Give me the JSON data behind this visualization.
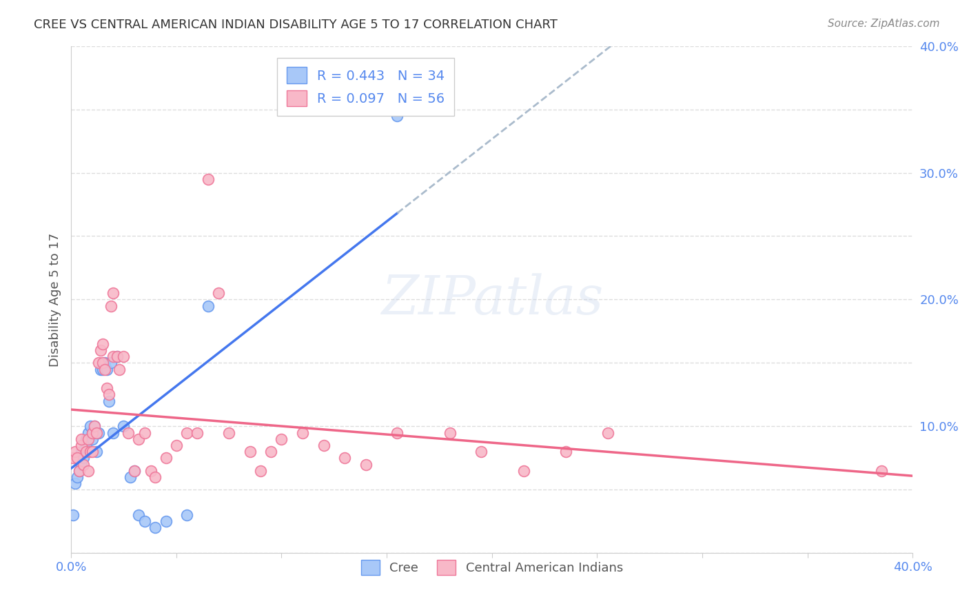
{
  "title": "CREE VS CENTRAL AMERICAN INDIAN DISABILITY AGE 5 TO 17 CORRELATION CHART",
  "source": "Source: ZipAtlas.com",
  "ylabel": "Disability Age 5 to 17",
  "xlim": [
    0.0,
    0.4
  ],
  "ylim": [
    0.0,
    0.4
  ],
  "xticks": [
    0.0,
    0.05,
    0.1,
    0.15,
    0.2,
    0.25,
    0.3,
    0.35,
    0.4
  ],
  "yticks": [
    0.0,
    0.05,
    0.1,
    0.15,
    0.2,
    0.25,
    0.3,
    0.35,
    0.4
  ],
  "grid_color": "#dddddd",
  "bg_color": "#ffffff",
  "watermark": "ZIPatlas",
  "cree_color": "#a8c8f8",
  "cai_color": "#f8b8c8",
  "cree_edge_color": "#6699ee",
  "cai_edge_color": "#ee7799",
  "cree_line_color": "#4477ee",
  "cai_line_color": "#ee6688",
  "R_cree": 0.443,
  "N_cree": 34,
  "R_cai": 0.097,
  "N_cai": 56,
  "cree_x": [
    0.001,
    0.002,
    0.003,
    0.004,
    0.005,
    0.005,
    0.006,
    0.007,
    0.007,
    0.008,
    0.009,
    0.01,
    0.01,
    0.011,
    0.012,
    0.013,
    0.014,
    0.015,
    0.016,
    0.017,
    0.018,
    0.019,
    0.02,
    0.022,
    0.025,
    0.028,
    0.03,
    0.032,
    0.035,
    0.04,
    0.045,
    0.055,
    0.065,
    0.155
  ],
  "cree_y": [
    0.03,
    0.055,
    0.06,
    0.065,
    0.07,
    0.08,
    0.075,
    0.085,
    0.09,
    0.095,
    0.1,
    0.09,
    0.095,
    0.1,
    0.08,
    0.095,
    0.145,
    0.145,
    0.15,
    0.145,
    0.12,
    0.15,
    0.095,
    0.155,
    0.1,
    0.06,
    0.065,
    0.03,
    0.025,
    0.02,
    0.025,
    0.03,
    0.195,
    0.345
  ],
  "cai_x": [
    0.001,
    0.002,
    0.003,
    0.004,
    0.005,
    0.005,
    0.006,
    0.007,
    0.008,
    0.008,
    0.009,
    0.01,
    0.01,
    0.011,
    0.012,
    0.013,
    0.014,
    0.015,
    0.015,
    0.016,
    0.017,
    0.018,
    0.019,
    0.02,
    0.02,
    0.022,
    0.023,
    0.025,
    0.027,
    0.03,
    0.032,
    0.035,
    0.038,
    0.04,
    0.045,
    0.05,
    0.055,
    0.06,
    0.065,
    0.07,
    0.075,
    0.085,
    0.09,
    0.095,
    0.1,
    0.11,
    0.12,
    0.13,
    0.14,
    0.155,
    0.18,
    0.195,
    0.215,
    0.235,
    0.255,
    0.385
  ],
  "cai_y": [
    0.075,
    0.08,
    0.075,
    0.065,
    0.085,
    0.09,
    0.07,
    0.08,
    0.065,
    0.09,
    0.08,
    0.08,
    0.095,
    0.1,
    0.095,
    0.15,
    0.16,
    0.15,
    0.165,
    0.145,
    0.13,
    0.125,
    0.195,
    0.155,
    0.205,
    0.155,
    0.145,
    0.155,
    0.095,
    0.065,
    0.09,
    0.095,
    0.065,
    0.06,
    0.075,
    0.085,
    0.095,
    0.095,
    0.295,
    0.205,
    0.095,
    0.08,
    0.065,
    0.08,
    0.09,
    0.095,
    0.085,
    0.075,
    0.07,
    0.095,
    0.095,
    0.08,
    0.065,
    0.08,
    0.095,
    0.065
  ]
}
